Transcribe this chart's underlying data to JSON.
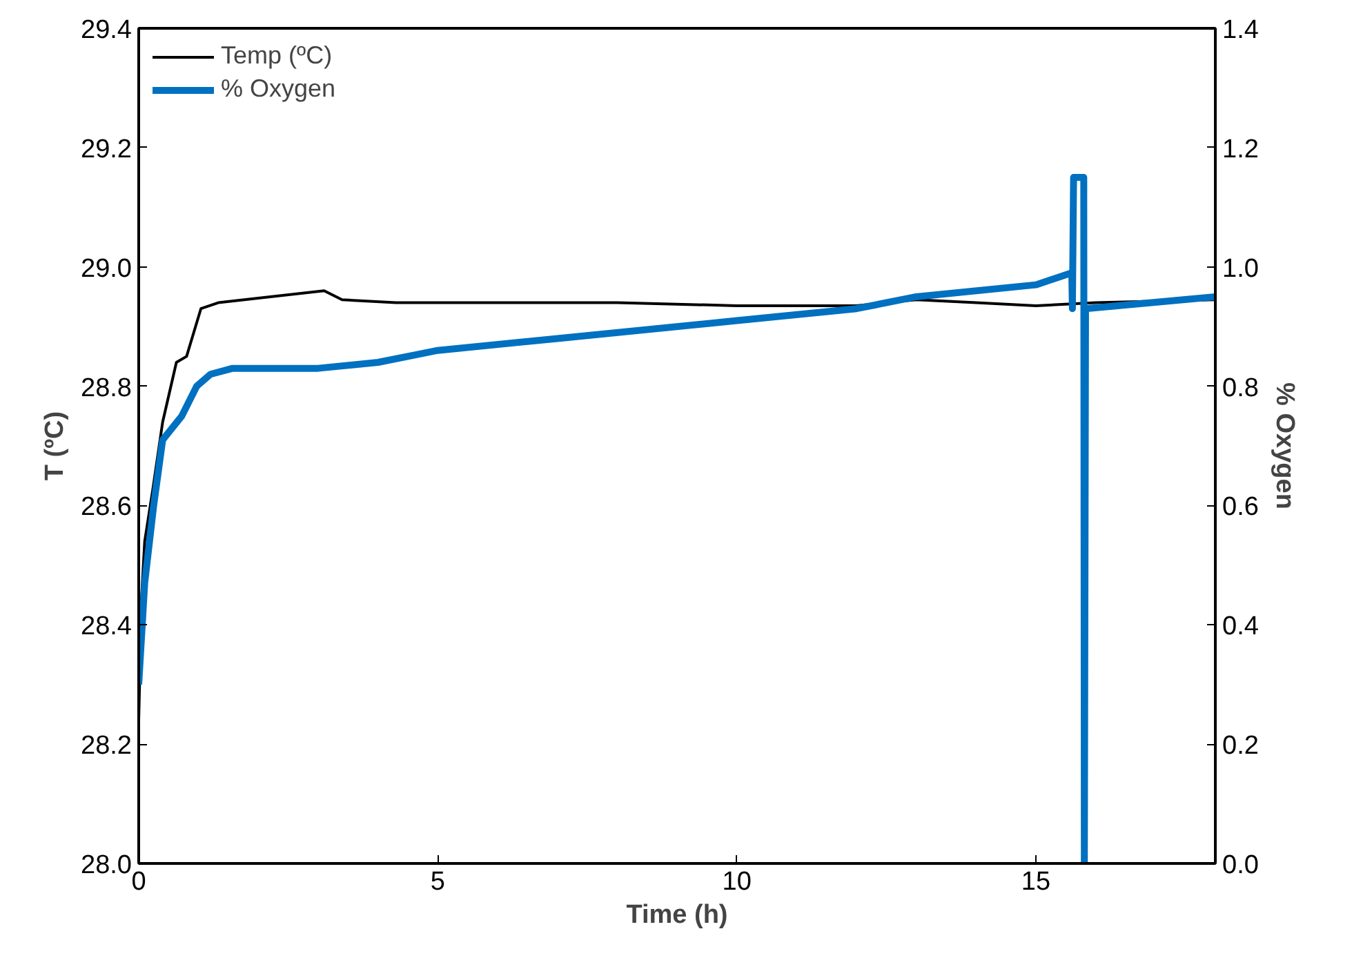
{
  "chart_data": {
    "type": "line",
    "xlabel": "Time (h)",
    "ylabel": "T (ºC)",
    "y2label": "% Oxygen",
    "xlim": [
      0,
      18
    ],
    "xticks": [
      0,
      5,
      10,
      15
    ],
    "ylim": [
      28.0,
      29.4
    ],
    "yticks": [
      {
        "value": 28.0,
        "label": "28.0"
      },
      {
        "value": 28.2,
        "label": "28.2"
      },
      {
        "value": 28.4,
        "label": "28.4"
      },
      {
        "value": 28.6,
        "label": "28.6"
      },
      {
        "value": 28.8,
        "label": "28.8"
      },
      {
        "value": 29.0,
        "label": "29.0"
      },
      {
        "value": 29.2,
        "label": "29.2"
      },
      {
        "value": 29.4,
        "label": "29.4"
      }
    ],
    "y2lim": [
      0,
      1.4
    ],
    "y2ticks": [
      {
        "value": 0,
        "label": "0.0"
      },
      {
        "value": 0.2,
        "label": "0.2"
      },
      {
        "value": 0.4,
        "label": "0.4"
      },
      {
        "value": 0.6,
        "label": "0.6"
      },
      {
        "value": 0.8,
        "label": "0.8"
      },
      {
        "value": 1.0,
        "label": "1.0"
      },
      {
        "value": 1.2,
        "label": "1.2"
      },
      {
        "value": 1.4,
        "label": "1.4"
      }
    ],
    "legend": "top left",
    "grid": false,
    "series": [
      {
        "name": "Temp (ºC)",
        "color": "#000000",
        "x": [
          0,
          0.05,
          0.1,
          0.24,
          0.4,
          0.63,
          0.8,
          1.04,
          1.33,
          2.2,
          3.1,
          3.4,
          4.3,
          6,
          8,
          10,
          12,
          13,
          14,
          15,
          16,
          18
        ],
        "values": [
          28.24,
          28.45,
          28.54,
          28.63,
          28.74,
          28.84,
          28.85,
          28.93,
          28.94,
          28.95,
          28.96,
          28.945,
          28.94,
          28.94,
          28.94,
          28.935,
          28.935,
          28.945,
          28.94,
          28.935,
          28.94,
          28.945
        ]
      },
      {
        "name": "% Oxygen",
        "color": "#0070c0",
        "axis": "y2",
        "x": [
          0,
          0.1,
          0.25,
          0.4,
          0.72,
          0.97,
          1.2,
          1.57,
          3,
          4,
          5,
          7,
          10,
          12,
          13,
          15,
          15.6,
          15.61,
          15.63,
          15.8,
          15.81,
          15.83,
          18
        ],
        "values": [
          0.3,
          0.47,
          0.6,
          0.71,
          0.75,
          0.8,
          0.82,
          0.83,
          0.83,
          0.84,
          0.86,
          0.88,
          0.91,
          0.93,
          0.95,
          0.97,
          0.99,
          0.93,
          1.15,
          1.15,
          0,
          0.93,
          0.95
        ]
      }
    ]
  }
}
